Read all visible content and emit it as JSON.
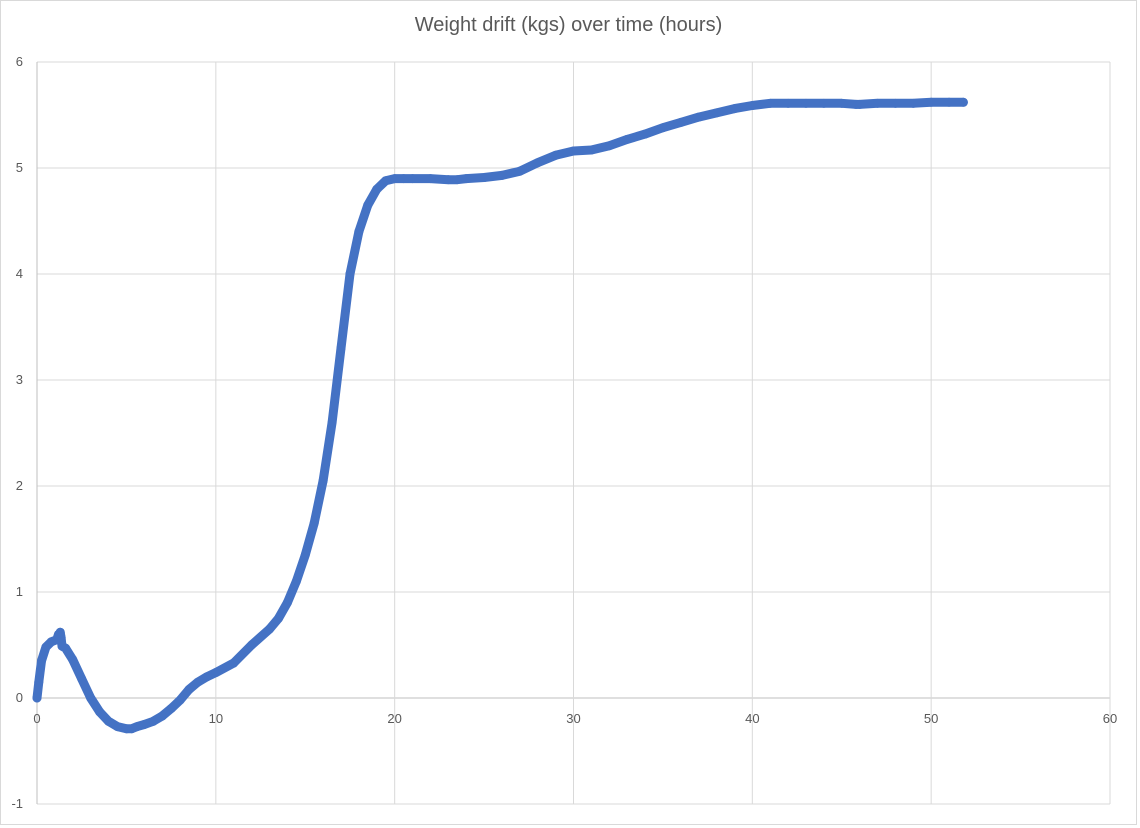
{
  "chart_data": {
    "type": "scatter",
    "title": "Weight drift (kgs) over time (hours)",
    "xlabel": "",
    "ylabel": "",
    "xlim": [
      0,
      60
    ],
    "ylim": [
      -1,
      6
    ],
    "xticks": [
      0,
      10,
      20,
      30,
      40,
      50,
      60
    ],
    "yticks": [
      -1,
      0,
      1,
      2,
      3,
      4,
      5,
      6
    ],
    "grid": true,
    "legend": "none",
    "series": [
      {
        "color": "#4472C4",
        "x": [
          0,
          0.1,
          0.25,
          0.5,
          0.8,
          1.1,
          1.2,
          1.25,
          1.3,
          1.35,
          1.4,
          1.6,
          2.0,
          2.5,
          3.0,
          3.5,
          4.0,
          4.5,
          5.0,
          5.3,
          5.6,
          6.0,
          6.5,
          7.0,
          7.5,
          8.0,
          8.5,
          9.0,
          9.5,
          10.0,
          11.0,
          12.0,
          13.0,
          13.5,
          14.0,
          14.5,
          15.0,
          15.5,
          16.0,
          16.5,
          17.0,
          17.5,
          18.0,
          18.5,
          19.0,
          19.5,
          20.0,
          20.5,
          21.0,
          22.0,
          23.0,
          23.5,
          24.0,
          25.0,
          26.0,
          27.0,
          28.0,
          29.0,
          30.0,
          31.0,
          32.0,
          33.0,
          34.0,
          35.0,
          36.0,
          37.0,
          38.0,
          39.0,
          40.0,
          41.0,
          42.0,
          43.0,
          44.0,
          45.0,
          45.8,
          46.0,
          47.0,
          48.0,
          49.0,
          50.0,
          51.0,
          51.8
        ],
        "y": [
          0.0,
          0.15,
          0.35,
          0.48,
          0.53,
          0.55,
          0.6,
          0.55,
          0.62,
          0.57,
          0.49,
          0.47,
          0.36,
          0.18,
          0.0,
          -0.13,
          -0.22,
          -0.27,
          -0.29,
          -0.29,
          -0.27,
          -0.25,
          -0.22,
          -0.17,
          -0.1,
          -0.02,
          0.08,
          0.15,
          0.2,
          0.24,
          0.33,
          0.5,
          0.65,
          0.75,
          0.9,
          1.1,
          1.35,
          1.65,
          2.05,
          2.6,
          3.3,
          4.0,
          4.4,
          4.65,
          4.8,
          4.88,
          4.9,
          4.9,
          4.9,
          4.9,
          4.89,
          4.89,
          4.9,
          4.91,
          4.93,
          4.97,
          5.05,
          5.12,
          5.16,
          5.17,
          5.21,
          5.27,
          5.32,
          5.38,
          5.43,
          5.48,
          5.52,
          5.56,
          5.59,
          5.61,
          5.61,
          5.61,
          5.61,
          5.61,
          5.6,
          5.6,
          5.61,
          5.61,
          5.61,
          5.62,
          5.62,
          5.62
        ]
      }
    ]
  }
}
